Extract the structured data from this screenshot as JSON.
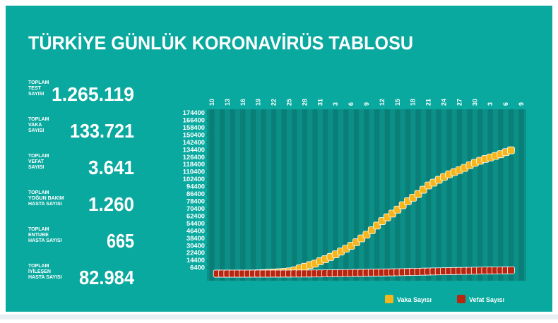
{
  "header": {
    "title": "TÜRKİYE GÜNLÜK KORONAVİRÜS TABLOSU"
  },
  "stats": [
    {
      "label": [
        "TOPLAM",
        "TEST",
        "SAYISI"
      ],
      "value": "1.265.119"
    },
    {
      "label": [
        "TOPLAM",
        "VAKA",
        "SAYISI"
      ],
      "value": "133.721"
    },
    {
      "label": [
        "TOPLAM",
        "VEFAT",
        "SAYISI"
      ],
      "value": "3.641"
    },
    {
      "label": [
        "TOPLAM",
        "YOĞUN BAKIM",
        "HASTA SAYISI"
      ],
      "value": "1.260"
    },
    {
      "label": [
        "TOPLAM",
        "ENTUBE",
        "HASTA SAYISI"
      ],
      "value": "665"
    },
    {
      "label": [
        "TOPLAM",
        "İYİLEŞEN",
        "HASTA SAYISI"
      ],
      "value": "82.984"
    }
  ],
  "chart_data": {
    "type": "scatter",
    "categories": [
      "10",
      null,
      null,
      "13",
      null,
      null,
      "16",
      null,
      null,
      "19",
      null,
      null,
      "22",
      null,
      null,
      "25",
      null,
      null,
      "28",
      null,
      null,
      "31",
      null,
      null,
      "3",
      null,
      null,
      "6",
      null,
      null,
      "9",
      null,
      null,
      "12",
      null,
      null,
      "15",
      null,
      null,
      "18",
      null,
      null,
      "21",
      null,
      null,
      "24",
      null,
      null,
      "27",
      null,
      null,
      "30",
      null,
      null,
      "3",
      null,
      null,
      "6",
      null,
      null,
      "9"
    ],
    "series": [
      {
        "name": "Vaka Sayısı",
        "color": "#f5b51b",
        "values": [
          null,
          1,
          1,
          5,
          6,
          18,
          47,
          98,
          191,
          359,
          670,
          947,
          1236,
          1529,
          1872,
          2433,
          3629,
          5698,
          7402,
          9217,
          10827,
          13531,
          15679,
          18135,
          20921,
          23934,
          27069,
          30217,
          34109,
          38226,
          42282,
          47029,
          52167,
          56956,
          61049,
          65111,
          69392,
          74193,
          78546,
          82329,
          86306,
          90980,
          95591,
          98674,
          101790,
          104912,
          107773,
          110130,
          112261,
          114653,
          117589,
          120204,
          122392,
          124375,
          126045,
          127659,
          129491,
          131744,
          133721,
          null,
          null
        ]
      },
      {
        "name": "Vefat Sayısı",
        "color": "#b9260f",
        "values": [
          null,
          0,
          0,
          0,
          0,
          0,
          0,
          1,
          2,
          3,
          4,
          9,
          30,
          37,
          44,
          59,
          75,
          92,
          108,
          131,
          168,
          214,
          277,
          356,
          425,
          501,
          574,
          649,
          725,
          812,
          908,
          1006,
          1101,
          1198,
          1296,
          1403,
          1518,
          1643,
          1769,
          1890,
          2017,
          2140,
          2259,
          2376,
          2491,
          2600,
          2706,
          2805,
          2900,
          2992,
          3081,
          3174,
          3258,
          3336,
          3397,
          3461,
          3520,
          3584,
          3641,
          null,
          null
        ]
      }
    ],
    "ylim": [
      0,
      174400
    ],
    "yticks": [
      6400,
      14400,
      22400,
      30400,
      38400,
      46400,
      54400,
      62400,
      70400,
      78400,
      86400,
      94400,
      102400,
      110400,
      118400,
      126400,
      134400,
      142400,
      150400,
      158400,
      166400,
      174400
    ],
    "grid": false
  }
}
